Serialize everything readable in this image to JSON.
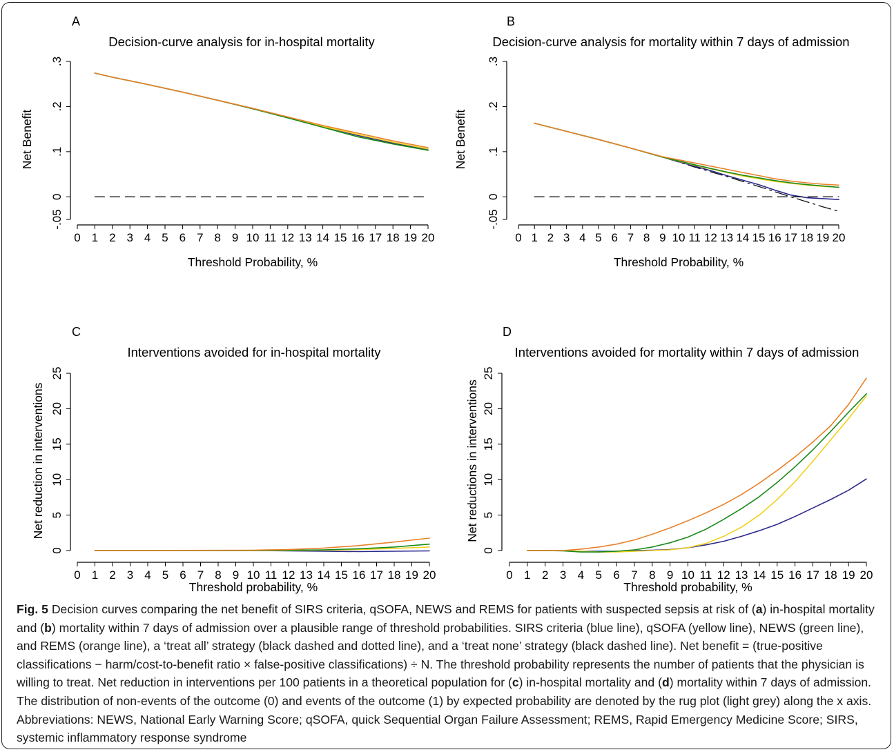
{
  "colors": {
    "sirs": "#2b2b8c",
    "qsofa": "#f0d020",
    "news": "#1a8a1a",
    "rems": "#e8822a",
    "treat_all": "#111111",
    "treat_none": "#111111"
  },
  "chart_data": [
    {
      "panel": "A",
      "type": "line",
      "title": "Decision-curve analysis for in-hospital mortality",
      "xlabel": "Threshold Probability, %",
      "ylabel": "Net Benefit",
      "xlim": [
        0,
        20
      ],
      "ylim": [
        -0.05,
        0.3
      ],
      "xticks": [
        "0",
        "1",
        "2",
        "3",
        "4",
        "5",
        "6",
        "7",
        "8",
        "9",
        "10",
        "11",
        "12",
        "13",
        "14",
        "15",
        "16",
        "17",
        "18",
        "19",
        "20"
      ],
      "xtick_values": [
        0,
        1,
        2,
        3,
        4,
        5,
        6,
        7,
        8,
        9,
        10,
        11,
        12,
        13,
        14,
        15,
        16,
        17,
        18,
        19,
        20
      ],
      "yticks": [
        "-.05",
        "0",
        ".1",
        ".2",
        ".3"
      ],
      "ytick_values": [
        -0.05,
        0,
        0.1,
        0.2,
        0.3
      ],
      "series": [
        {
          "key": "sirs",
          "style": "solid",
          "x": [
            1,
            2,
            4,
            6,
            8,
            10,
            12,
            14,
            16,
            18,
            20
          ],
          "y": [
            0.274,
            0.265,
            0.249,
            0.232,
            0.214,
            0.196,
            0.176,
            0.156,
            0.136,
            0.119,
            0.104
          ]
        },
        {
          "key": "qsofa",
          "style": "solid",
          "x": [
            1,
            2,
            4,
            6,
            8,
            10,
            12,
            14,
            16,
            18,
            20
          ],
          "y": [
            0.274,
            0.265,
            0.249,
            0.232,
            0.214,
            0.196,
            0.177,
            0.156,
            0.138,
            0.121,
            0.106
          ]
        },
        {
          "key": "news",
          "style": "solid",
          "x": [
            1,
            2,
            4,
            6,
            8,
            10,
            12,
            14,
            16,
            18,
            20
          ],
          "y": [
            0.274,
            0.265,
            0.249,
            0.232,
            0.214,
            0.195,
            0.175,
            0.154,
            0.133,
            0.117,
            0.103
          ]
        },
        {
          "key": "rems",
          "style": "solid",
          "x": [
            1,
            2,
            4,
            6,
            8,
            10,
            12,
            14,
            16,
            18,
            20
          ],
          "y": [
            0.274,
            0.265,
            0.249,
            0.232,
            0.214,
            0.196,
            0.177,
            0.158,
            0.141,
            0.124,
            0.109
          ]
        },
        {
          "key": "treat_none",
          "style": "dashed",
          "x": [
            1,
            20
          ],
          "y": [
            0,
            0
          ]
        }
      ]
    },
    {
      "panel": "B",
      "type": "line",
      "title": "Decision-curve analysis for mortality within 7 days of admission",
      "xlabel": "Threshold Probability, %",
      "ylabel": "Net Benefit",
      "xlim": [
        0,
        20
      ],
      "ylim": [
        -0.05,
        0.3
      ],
      "xticks": [
        "0",
        "1",
        "2",
        "3",
        "4",
        "5",
        "6",
        "7",
        "8",
        "9",
        "10",
        "11",
        "12",
        "13",
        "14",
        "15",
        "16",
        "17",
        "18",
        "19",
        "20"
      ],
      "xtick_values": [
        0,
        1,
        2,
        3,
        4,
        5,
        6,
        7,
        8,
        9,
        10,
        11,
        12,
        13,
        14,
        15,
        16,
        17,
        18,
        19,
        20
      ],
      "yticks": [
        "-.05",
        "0",
        ".1",
        ".2",
        ".3"
      ],
      "ytick_values": [
        -0.05,
        0,
        0.1,
        0.2,
        0.3
      ],
      "series": [
        {
          "key": "treat_all",
          "style": "dashdot",
          "x": [
            1,
            3,
            5,
            7,
            9,
            11,
            13,
            15,
            17,
            19,
            20
          ],
          "y": [
            0.163,
            0.145,
            0.127,
            0.108,
            0.088,
            0.066,
            0.045,
            0.023,
            0.0,
            -0.022,
            -0.032
          ]
        },
        {
          "key": "sirs",
          "style": "solid",
          "x": [
            1,
            3,
            5,
            7,
            9,
            11,
            12,
            13,
            14,
            15,
            16,
            17,
            18,
            19,
            20
          ],
          "y": [
            0.163,
            0.145,
            0.127,
            0.108,
            0.088,
            0.068,
            0.058,
            0.047,
            0.037,
            0.027,
            0.015,
            0.004,
            -0.002,
            -0.004,
            -0.006
          ]
        },
        {
          "key": "qsofa",
          "style": "solid",
          "x": [
            1,
            3,
            5,
            7,
            9,
            11,
            12,
            13,
            14,
            15,
            16,
            17,
            18,
            19,
            20
          ],
          "y": [
            0.163,
            0.145,
            0.127,
            0.108,
            0.088,
            0.07,
            0.062,
            0.054,
            0.046,
            0.04,
            0.034,
            0.03,
            0.026,
            0.023,
            0.021
          ]
        },
        {
          "key": "news",
          "style": "solid",
          "x": [
            1,
            3,
            5,
            7,
            9,
            11,
            12,
            13,
            14,
            15,
            16,
            17,
            18,
            19,
            20
          ],
          "y": [
            0.163,
            0.145,
            0.127,
            0.108,
            0.088,
            0.071,
            0.063,
            0.055,
            0.048,
            0.042,
            0.036,
            0.031,
            0.027,
            0.024,
            0.021
          ]
        },
        {
          "key": "rems",
          "style": "solid",
          "x": [
            1,
            3,
            5,
            7,
            9,
            11,
            12,
            13,
            14,
            15,
            16,
            17,
            18,
            19,
            20
          ],
          "y": [
            0.163,
            0.145,
            0.127,
            0.108,
            0.089,
            0.075,
            0.068,
            0.061,
            0.054,
            0.047,
            0.04,
            0.035,
            0.031,
            0.028,
            0.026
          ]
        },
        {
          "key": "treat_none",
          "style": "dashed",
          "x": [
            1,
            20
          ],
          "y": [
            0,
            0
          ]
        }
      ]
    },
    {
      "panel": "C",
      "type": "line",
      "title": "Interventions avoided for in-hospital mortality",
      "xlabel": "Threshold probability, %",
      "ylabel": "Net reduction in interventions",
      "xlim": [
        0,
        20
      ],
      "ylim": [
        0,
        25
      ],
      "xticks": [
        "0",
        "1",
        "2",
        "3",
        "4",
        "5",
        "6",
        "7",
        "8",
        "9",
        "10",
        "11",
        "12",
        "13",
        "14",
        "15",
        "16",
        "17",
        "18",
        "19",
        "20"
      ],
      "xtick_values": [
        0,
        1,
        2,
        3,
        4,
        5,
        6,
        7,
        8,
        9,
        10,
        11,
        12,
        13,
        14,
        15,
        16,
        17,
        18,
        19,
        20
      ],
      "yticks": [
        "0",
        "5",
        "10",
        "15",
        "20",
        "25"
      ],
      "ytick_values": [
        0,
        5,
        10,
        15,
        20,
        25
      ],
      "series": [
        {
          "key": "sirs",
          "style": "solid",
          "x": [
            1,
            10,
            12,
            14,
            16,
            18,
            20
          ],
          "y": [
            0,
            0,
            -0.05,
            -0.1,
            -0.15,
            -0.1,
            -0.05
          ]
        },
        {
          "key": "qsofa",
          "style": "solid",
          "x": [
            1,
            10,
            12,
            14,
            16,
            18,
            20
          ],
          "y": [
            0,
            0,
            0,
            0.05,
            0.15,
            0.3,
            0.5
          ]
        },
        {
          "key": "news",
          "style": "solid",
          "x": [
            1,
            10,
            12,
            14,
            16,
            18,
            20
          ],
          "y": [
            0,
            0,
            0.05,
            0.1,
            0.25,
            0.5,
            0.9
          ]
        },
        {
          "key": "rems",
          "style": "solid",
          "x": [
            1,
            10,
            12,
            14,
            16,
            18,
            20
          ],
          "y": [
            0,
            0.05,
            0.15,
            0.35,
            0.7,
            1.2,
            1.75
          ]
        }
      ]
    },
    {
      "panel": "D",
      "type": "line",
      "title": "Interventions avoided for mortality within 7 days of admission",
      "xlabel": "Threshold probability, %",
      "ylabel": "Net reductions in interventions",
      "xlim": [
        0,
        20
      ],
      "ylim": [
        0,
        25
      ],
      "xticks": [
        "0",
        "1",
        "2",
        "3",
        "4",
        "5",
        "6",
        "7",
        "8",
        "9",
        "10",
        "11",
        "12",
        "13",
        "14",
        "15",
        "16",
        "17",
        "18",
        "19",
        "20"
      ],
      "xtick_values": [
        0,
        1,
        2,
        3,
        4,
        5,
        6,
        7,
        8,
        9,
        10,
        11,
        12,
        13,
        14,
        15,
        16,
        17,
        18,
        19,
        20
      ],
      "yticks": [
        "0",
        "5",
        "10",
        "15",
        "20",
        "25"
      ],
      "ytick_values": [
        0,
        5,
        10,
        15,
        20,
        25
      ],
      "series": [
        {
          "key": "sirs",
          "style": "solid",
          "x": [
            1,
            2,
            3,
            4,
            5,
            6,
            7,
            8,
            9,
            10,
            11,
            12,
            13,
            14,
            15,
            16,
            17,
            18,
            19,
            20
          ],
          "y": [
            0,
            0,
            0,
            -0.1,
            -0.1,
            -0.1,
            0,
            0.05,
            0.15,
            0.4,
            0.8,
            1.3,
            2.0,
            2.8,
            3.7,
            4.8,
            6.0,
            7.2,
            8.5,
            10.1
          ]
        },
        {
          "key": "qsofa",
          "style": "solid",
          "x": [
            1,
            2,
            3,
            4,
            5,
            6,
            7,
            8,
            9,
            10,
            11,
            12,
            13,
            14,
            15,
            16,
            17,
            18,
            19,
            20
          ],
          "y": [
            0,
            0,
            0,
            -0.1,
            -0.2,
            -0.2,
            -0.1,
            0,
            0.1,
            0.4,
            1.0,
            2.0,
            3.3,
            5.0,
            7.2,
            9.7,
            12.6,
            15.6,
            18.6,
            21.8
          ]
        },
        {
          "key": "news",
          "style": "solid",
          "x": [
            1,
            2,
            3,
            4,
            5,
            6,
            7,
            8,
            9,
            10,
            11,
            12,
            13,
            14,
            15,
            16,
            17,
            18,
            19,
            20
          ],
          "y": [
            0,
            0,
            -0.05,
            -0.2,
            -0.2,
            -0.1,
            0.1,
            0.5,
            1.1,
            1.9,
            3.0,
            4.4,
            5.9,
            7.6,
            9.6,
            11.8,
            14.2,
            16.8,
            19.5,
            22.1
          ]
        },
        {
          "key": "rems",
          "style": "solid",
          "x": [
            1,
            2,
            3,
            4,
            5,
            6,
            7,
            8,
            9,
            10,
            11,
            12,
            13,
            14,
            15,
            16,
            17,
            18,
            19,
            20
          ],
          "y": [
            0,
            0,
            0,
            0.2,
            0.5,
            0.9,
            1.5,
            2.3,
            3.2,
            4.2,
            5.3,
            6.5,
            7.9,
            9.5,
            11.3,
            13.2,
            15.3,
            17.6,
            20.6,
            24.3
          ]
        }
      ]
    }
  ],
  "caption": {
    "label": "Fig. 5",
    "segments": [
      {
        "t": " Decision curves comparing the net benefit of SIRS criteria, qSOFA, NEWS and REMS for patients with suspected sepsis at risk of (",
        "b": false
      },
      {
        "t": "a",
        "b": true
      },
      {
        "t": ") in-hospital mortality and (",
        "b": false
      },
      {
        "t": "b",
        "b": true
      },
      {
        "t": ") mortality within 7 days of admission over a plausible range of threshold probabilities. SIRS criteria (blue line), qSOFA (yellow line), NEWS (green line), and REMS (orange line), a ‘treat all’ strategy (black dashed and dotted line), and a ‘treat none’ strategy (black dashed line). Net benefit = (true-positive classifications − harm/cost-to-benefit ratio × false-positive classifications) ÷ N. The threshold probability represents the number of patients that the physician is willing to treat. Net reduction in interventions per 100 patients in a theoretical population for (",
        "b": false
      },
      {
        "t": "c",
        "b": true
      },
      {
        "t": ") in-hospital mortality and (",
        "b": false
      },
      {
        "t": "d",
        "b": true
      },
      {
        "t": ") mortality within 7 days of admission. The distribution of non-events of the outcome (0) and events of the outcome (1) by expected probability are denoted by the rug plot (light grey) along the x axis. Abbreviations: NEWS, National Early Warning Score; qSOFA, quick Sequential Organ Failure Assessment; REMS, Rapid Emergency Medicine Score; SIRS, systemic inflammatory response syndrome",
        "b": false
      }
    ]
  }
}
